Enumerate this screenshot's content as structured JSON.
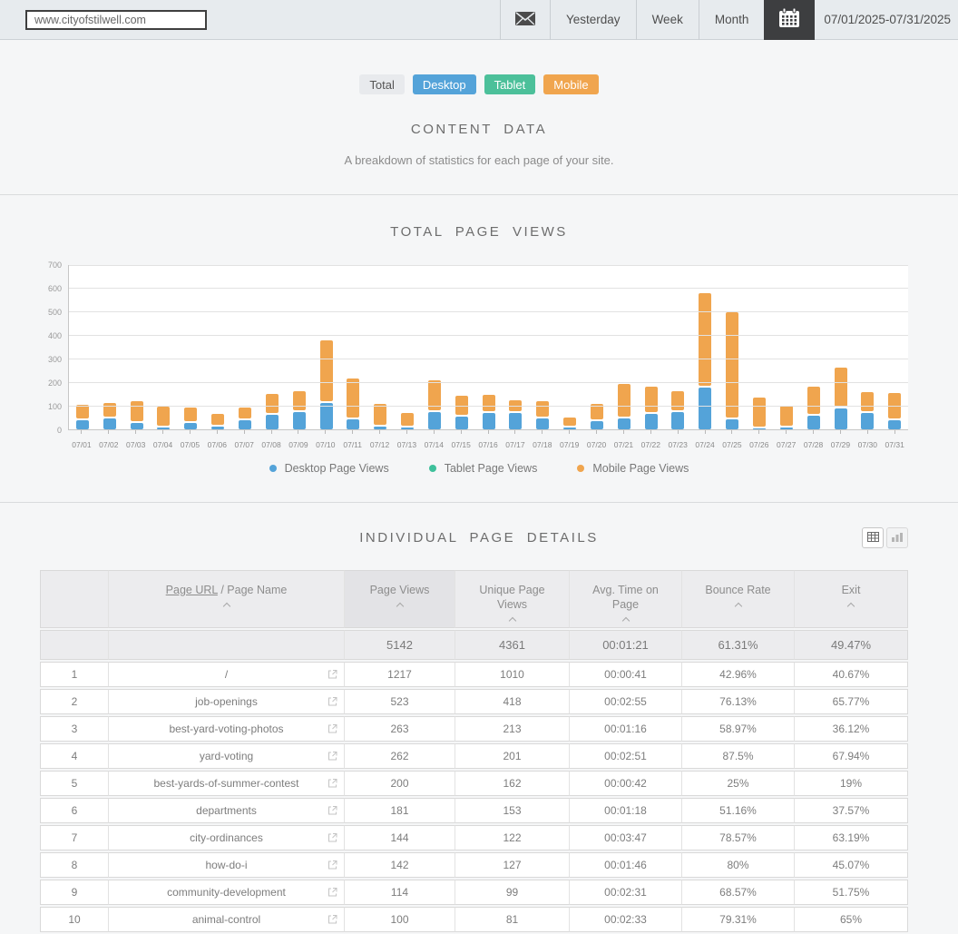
{
  "topbar": {
    "url_value": "www.cityofstilwell.com",
    "buttons": {
      "yesterday": "Yesterday",
      "week": "Week",
      "month": "Month"
    },
    "date_range": "07/01/2025-07/31/2025"
  },
  "icons": {
    "mail-icon": "envelope",
    "calendar-icon": "calendar",
    "external-link-icon": "box with arrow",
    "table-view-icon": "grid",
    "bar-chart-view-icon": "bar chart",
    "sort-caret-icon": "chevron up",
    "legend-dot": "circle"
  },
  "device_toggles": [
    {
      "label": "Total",
      "bg": "#e8eaed",
      "fg": "#555555"
    },
    {
      "label": "Desktop",
      "bg": "#54a3d9",
      "fg": "#ffffff"
    },
    {
      "label": "Tablet",
      "bg": "#4cc09a",
      "fg": "#ffffff"
    },
    {
      "label": "Mobile",
      "bg": "#f0a54e",
      "fg": "#ffffff"
    }
  ],
  "content_section": {
    "title": "CONTENT DATA",
    "subtitle": "A breakdown of statistics for each page of your site."
  },
  "chart_section": {
    "title": "TOTAL PAGE VIEWS"
  },
  "chart_data": {
    "type": "bar",
    "stacked": true,
    "title": "TOTAL PAGE VIEWS",
    "categories": [
      "07/01",
      "07/02",
      "07/03",
      "07/04",
      "07/05",
      "07/06",
      "07/07",
      "07/08",
      "07/09",
      "07/10",
      "07/11",
      "07/12",
      "07/13",
      "07/14",
      "07/15",
      "07/16",
      "07/17",
      "07/18",
      "07/19",
      "07/20",
      "07/21",
      "07/22",
      "07/23",
      "07/24",
      "07/25",
      "07/26",
      "07/27",
      "07/28",
      "07/29",
      "07/30",
      "07/31"
    ],
    "series": [
      {
        "name": "Desktop Page Views",
        "color": "#54a3d9",
        "values": [
          40,
          47,
          28,
          8,
          27,
          13,
          38,
          60,
          73,
          110,
          43,
          13,
          8,
          72,
          55,
          70,
          68,
          45,
          8,
          35,
          48,
          64,
          74,
          178,
          44,
          5,
          8,
          57,
          90,
          69,
          40
        ]
      },
      {
        "name": "Tablet Page Views",
        "color": "#3ec09b",
        "values": [
          0,
          0,
          0,
          0,
          0,
          0,
          0,
          0,
          0,
          0,
          0,
          0,
          0,
          0,
          0,
          0,
          0,
          0,
          0,
          0,
          0,
          0,
          0,
          0,
          0,
          0,
          0,
          0,
          0,
          0,
          0
        ]
      },
      {
        "name": "Mobile Page Views",
        "color": "#f0a54e",
        "values": [
          55,
          58,
          85,
          80,
          58,
          43,
          48,
          83,
          80,
          260,
          165,
          87,
          52,
          128,
          80,
          70,
          47,
          65,
          34,
          65,
          137,
          109,
          79,
          392,
          446,
          121,
          83,
          118,
          163,
          80,
          108
        ]
      }
    ],
    "ylim": [
      0,
      700
    ],
    "yticks": [
      0,
      100,
      200,
      300,
      400,
      500,
      600,
      700
    ],
    "grid": true,
    "legend_position": "bottom"
  },
  "table_section": {
    "title": "INDIVIDUAL PAGE DETAILS",
    "columns": {
      "rank": "",
      "page_url_link": "Page URL",
      "page_name_rest": " / Page Name",
      "views": "Page Views",
      "unique": "Unique Page Views",
      "time": "Avg. Time on Page",
      "bounce": "Bounce Rate",
      "exit": "Exit"
    },
    "summary": {
      "views": "5142",
      "unique": "4361",
      "time": "00:01:21",
      "bounce": "61.31%",
      "exit": "49.47%"
    },
    "rows": [
      {
        "rank": "1",
        "page": "/",
        "views": "1217",
        "unique": "1010",
        "time": "00:00:41",
        "bounce": "42.96%",
        "exit": "40.67%"
      },
      {
        "rank": "2",
        "page": "job-openings",
        "views": "523",
        "unique": "418",
        "time": "00:02:55",
        "bounce": "76.13%",
        "exit": "65.77%"
      },
      {
        "rank": "3",
        "page": "best-yard-voting-photos",
        "views": "263",
        "unique": "213",
        "time": "00:01:16",
        "bounce": "58.97%",
        "exit": "36.12%"
      },
      {
        "rank": "4",
        "page": "yard-voting",
        "views": "262",
        "unique": "201",
        "time": "00:02:51",
        "bounce": "87.5%",
        "exit": "67.94%"
      },
      {
        "rank": "5",
        "page": "best-yards-of-summer-contest",
        "views": "200",
        "unique": "162",
        "time": "00:00:42",
        "bounce": "25%",
        "exit": "19%"
      },
      {
        "rank": "6",
        "page": "departments",
        "views": "181",
        "unique": "153",
        "time": "00:01:18",
        "bounce": "51.16%",
        "exit": "37.57%"
      },
      {
        "rank": "7",
        "page": "city-ordinances",
        "views": "144",
        "unique": "122",
        "time": "00:03:47",
        "bounce": "78.57%",
        "exit": "63.19%"
      },
      {
        "rank": "8",
        "page": "how-do-i",
        "views": "142",
        "unique": "127",
        "time": "00:01:46",
        "bounce": "80%",
        "exit": "45.07%"
      },
      {
        "rank": "9",
        "page": "community-development",
        "views": "114",
        "unique": "99",
        "time": "00:02:31",
        "bounce": "68.57%",
        "exit": "51.75%"
      },
      {
        "rank": "10",
        "page": "animal-control",
        "views": "100",
        "unique": "81",
        "time": "00:02:33",
        "bounce": "79.31%",
        "exit": "65%"
      }
    ]
  }
}
